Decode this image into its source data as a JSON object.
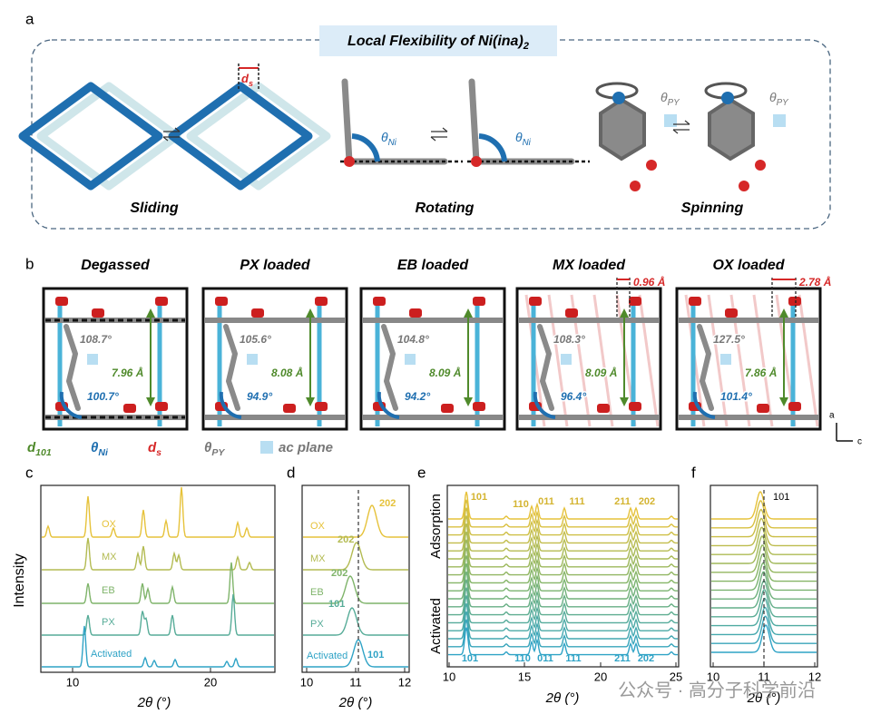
{
  "panel_a": {
    "label": "a",
    "title": "Local Flexibility of Ni(ina)",
    "title_sub": "2",
    "mechanisms": [
      "Sliding",
      "Rotating",
      "Spinning"
    ],
    "ds_main": "d",
    "ds_sub": "s",
    "theta": "θ",
    "ni_sub": "Ni",
    "py_sub": "PY"
  },
  "panel_b": {
    "label": "b",
    "panels": [
      {
        "title": "Degassed",
        "theta_py": "108.7°",
        "d101": "7.96 Å",
        "theta_ni": "100.7°"
      },
      {
        "title": "PX loaded",
        "theta_py": "105.6°",
        "d101": "8.08 Å",
        "theta_ni": "94.9°"
      },
      {
        "title": "EB loaded",
        "theta_py": "104.8°",
        "d101": "8.09 Å",
        "theta_ni": "94.2°"
      },
      {
        "title": "MX loaded",
        "theta_py": "108.3°",
        "d101": "8.09 Å",
        "theta_ni": "96.4°",
        "offset": "0.96 Å"
      },
      {
        "title": "OX loaded",
        "theta_py": "127.5°",
        "d101": "7.86 Å",
        "theta_ni": "101.4°",
        "offset": "2.78 Å"
      }
    ],
    "axis_a": "a",
    "axis_c": "c",
    "legend": [
      {
        "main": "d",
        "sub": "101"
      },
      {
        "main": "θ",
        "sub": "Ni"
      },
      {
        "main": "d",
        "sub": "s"
      },
      {
        "main": "θ",
        "sub": "PY"
      },
      {
        "main": "ac plane"
      }
    ]
  },
  "panel_c": {
    "label": "c",
    "ylabel": "Intensity",
    "xlabel": "2θ (°)",
    "xticks": [
      "10",
      "20"
    ],
    "traces": [
      "OX",
      "MX",
      "EB",
      "PX",
      "Activated"
    ]
  },
  "panel_d": {
    "label": "d",
    "xlabel": "2θ (°)",
    "xticks": [
      "10",
      "11",
      "12"
    ],
    "traces": [
      "OX",
      "MX",
      "EB",
      "PX",
      "Activated"
    ],
    "peak_labels": [
      "202",
      "202",
      "202",
      "101",
      "101"
    ]
  },
  "panel_e": {
    "label": "e",
    "xlabel": "2θ (°)",
    "xticks": [
      "10",
      "15",
      "20",
      "25"
    ],
    "top_label": "Adsorption",
    "bottom_label": "Activated",
    "top_peaks": [
      "101",
      "110",
      "011",
      "111",
      "211",
      "202"
    ],
    "bottom_peaks": [
      "101",
      "110",
      "011",
      "111",
      "211",
      "202"
    ]
  },
  "panel_f": {
    "label": "f",
    "xlabel": "2θ (°)",
    "xticks": [
      "10",
      "11",
      "12"
    ],
    "peak": "101"
  },
  "watermark": "公众号 · 高分子科学前沿"
}
